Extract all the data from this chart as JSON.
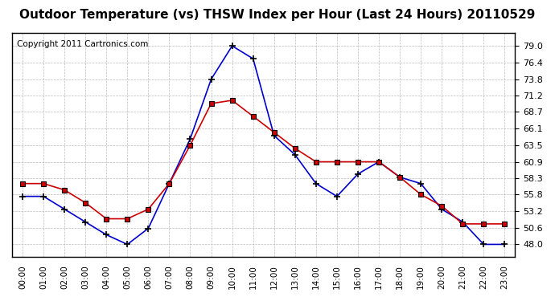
{
  "title": "Outdoor Temperature (vs) THSW Index per Hour (Last 24 Hours) 20110529",
  "copyright": "Copyright 2011 Cartronics.com",
  "hours": [
    "00:00",
    "01:00",
    "02:00",
    "03:00",
    "04:00",
    "05:00",
    "06:00",
    "07:00",
    "08:00",
    "09:00",
    "10:00",
    "11:00",
    "12:00",
    "13:00",
    "14:00",
    "15:00",
    "16:00",
    "17:00",
    "18:00",
    "19:00",
    "20:00",
    "21:00",
    "22:00",
    "23:00"
  ],
  "temp_red": [
    57.5,
    57.5,
    56.5,
    54.5,
    52.0,
    52.0,
    53.5,
    57.5,
    63.5,
    70.0,
    70.5,
    68.0,
    65.5,
    63.0,
    60.9,
    60.9,
    60.9,
    60.9,
    58.5,
    55.8,
    54.0,
    51.2,
    51.2,
    51.2
  ],
  "thsw_blue": [
    55.5,
    55.5,
    53.5,
    51.5,
    49.5,
    48.0,
    50.5,
    57.5,
    64.5,
    73.8,
    79.0,
    77.0,
    65.0,
    62.0,
    57.5,
    55.5,
    59.0,
    60.9,
    58.5,
    57.5,
    53.5,
    51.5,
    48.0,
    48.0
  ],
  "ylim_min": 46.0,
  "ylim_max": 81.0,
  "yticks": [
    48.0,
    50.6,
    53.2,
    55.8,
    58.3,
    60.9,
    63.5,
    66.1,
    68.7,
    71.2,
    73.8,
    76.4,
    79.0
  ],
  "bg_color": "#ffffff",
  "plot_bg_color": "#ffffff",
  "grid_color": "#aaaaaa",
  "red_color": "#cc0000",
  "blue_color": "#0000cc",
  "title_fontsize": 11,
  "copyright_fontsize": 7.5
}
